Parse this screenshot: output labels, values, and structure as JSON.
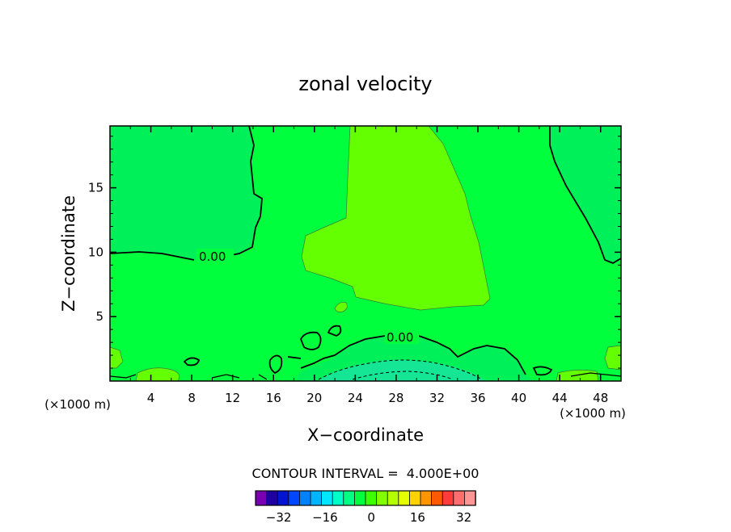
{
  "chart_data": {
    "type": "heatmap",
    "title": "zonal velocity",
    "xlabel": "X−coordinate",
    "ylabel": "Z−coordinate",
    "x_unit_left": "(×1000 m)",
    "x_unit_right": "(×1000 m)",
    "xlim": [
      0,
      50
    ],
    "ylim": [
      0,
      19.8
    ],
    "x_ticks": [
      4,
      8,
      12,
      16,
      20,
      24,
      28,
      32,
      36,
      40,
      44,
      48
    ],
    "x_tick_labels": [
      "4",
      "8",
      "12",
      "16",
      "20",
      "24",
      "28",
      "32",
      "36",
      "40",
      "44",
      "48"
    ],
    "y_ticks": [
      5,
      10,
      15
    ],
    "y_tick_labels": [
      "5",
      "10",
      "15"
    ],
    "contour_labels": [
      {
        "text": "0.00",
        "x": 9.5,
        "z": 9.8
      },
      {
        "text": "0.00",
        "x": 28.2,
        "z": 3.3
      }
    ],
    "contour_interval_text": "CONTOUR INTERVAL =  4.000E+00",
    "colorbar": {
      "levels": [
        -36,
        -32,
        -28,
        -24,
        -20,
        -16,
        -12,
        -8,
        -4,
        0,
        4,
        8,
        12,
        16,
        20,
        24,
        28,
        32,
        36
      ],
      "colors": [
        "#7a00b4",
        "#1e00a0",
        "#0014d2",
        "#0046ff",
        "#0082ff",
        "#00b4ff",
        "#00e6ff",
        "#00ffc8",
        "#00ff82",
        "#00ff3c",
        "#3cff00",
        "#82ff00",
        "#b4ff00",
        "#e6ff00",
        "#ffd200",
        "#ff9600",
        "#ff5a00",
        "#ff3c3c",
        "#ff6e6e",
        "#ff9696"
      ],
      "tick_labels": [
        "−32",
        "−16",
        "0",
        "16",
        "32"
      ],
      "tick_values": [
        -32,
        -16,
        0,
        16,
        32
      ]
    },
    "region_colors": {
      "main": "#00ff3c",
      "weak_positive": "#64ff00",
      "slight_negative": "#00f05a",
      "negative_core": "#14e696"
    }
  }
}
